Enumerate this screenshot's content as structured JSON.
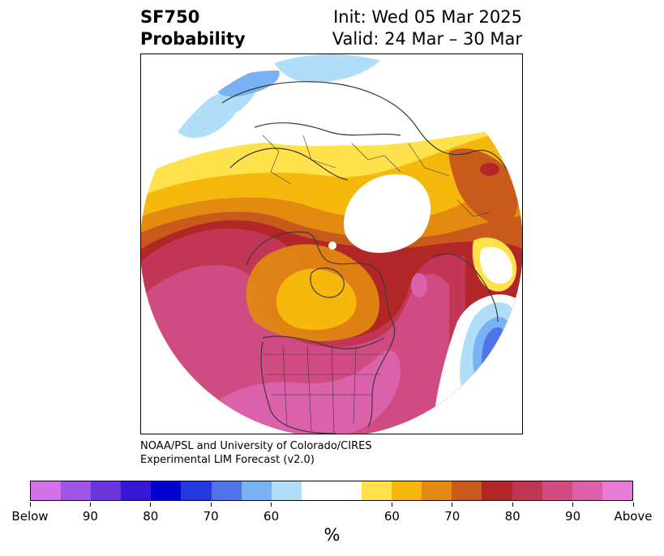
{
  "header": {
    "variable": "SF750",
    "product": "Probability",
    "init": "Init: Wed 05 Mar 2025",
    "valid": "Valid: 24 Mar – 30 Mar"
  },
  "credit": {
    "line1": "NOAA/PSL and University of Colorado/CIRES",
    "line2": "Experimental LIM Forecast (v2.0)"
  },
  "colorbar": {
    "below_colors": [
      "#d471e8",
      "#9e55e3",
      "#6a36dc",
      "#3717d6",
      "#0000cf",
      "#2438dd",
      "#4f73e8",
      "#78b1f4",
      "#b0def8"
    ],
    "neutral_color": "#ffffff",
    "above_colors": [
      "#ffe14b",
      "#f6b80c",
      "#e28b10",
      "#c85a1c",
      "#b22628",
      "#c23655",
      "#cf4b82",
      "#db61aa",
      "#e87ad8"
    ],
    "tick_labels": [
      "Below",
      "90",
      "80",
      "70",
      "60",
      "60",
      "70",
      "80",
      "90",
      "Above"
    ],
    "unit": "%"
  },
  "map": {
    "projection": "north polar stereographic",
    "icons": [
      "coastline-outlines",
      "country-borders",
      "us-state-borders"
    ]
  }
}
